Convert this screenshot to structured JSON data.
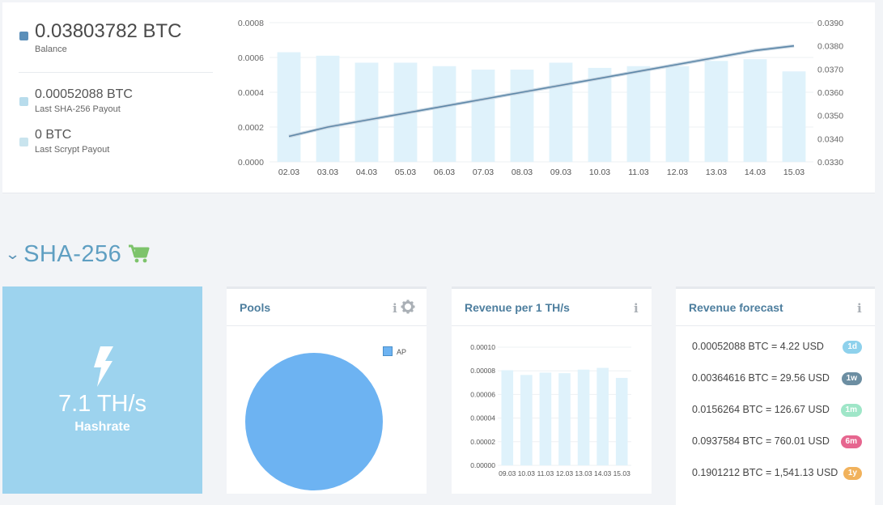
{
  "balance": {
    "amount": "0.03803782 BTC",
    "label": "Balance",
    "color": "#5b8fb9"
  },
  "payouts": [
    {
      "amount": "0.00052088 BTC",
      "label": "Last SHA-256 Payout",
      "color": "#b8dcec"
    },
    {
      "amount": "0 BTC",
      "label": "Last Scrypt Payout",
      "color": "#c9e4ee"
    }
  ],
  "chart_data": [
    {
      "type": "bar+line",
      "categories": [
        "02.03",
        "03.03",
        "04.03",
        "05.03",
        "06.03",
        "07.03",
        "08.03",
        "09.03",
        "10.03",
        "11.03",
        "12.03",
        "13.03",
        "14.03",
        "15.03"
      ],
      "series": [
        {
          "axis": "left",
          "type": "bar",
          "color": "#dff2fb",
          "values": [
            0.00063,
            0.00061,
            0.00057,
            0.00057,
            0.00055,
            0.00053,
            0.00053,
            0.00057,
            0.00054,
            0.00055,
            0.00055,
            0.00058,
            0.00059,
            0.00052
          ]
        },
        {
          "axis": "right",
          "type": "line",
          "color": "#5d87a8",
          "values": [
            0.0341,
            0.0345,
            0.0348,
            0.0351,
            0.0354,
            0.0357,
            0.036,
            0.0363,
            0.0366,
            0.0369,
            0.0372,
            0.0375,
            0.0378,
            0.038
          ]
        }
      ],
      "ylim_left": [
        0,
        0.0008
      ],
      "yticks_left": [
        "0.0000",
        "0.0002",
        "0.0004",
        "0.0006",
        "0.0008"
      ],
      "ylim_right": [
        0.033,
        0.039
      ],
      "yticks_right": [
        "0.0330",
        "0.0340",
        "0.0350",
        "0.0360",
        "0.0370",
        "0.0380",
        "0.0390"
      ],
      "grid": true
    },
    {
      "type": "pie",
      "title": "Pools",
      "slices": [
        {
          "label": "AP",
          "value": 1,
          "color": "#6db3f2"
        }
      ],
      "legend": "top-right"
    },
    {
      "type": "bar",
      "title": "Revenue per 1 TH/s",
      "categories": [
        "09.03",
        "10.03",
        "11.03",
        "12.03",
        "13.03",
        "14.03",
        "15.03"
      ],
      "values": [
        8.05e-05,
        7.65e-05,
        7.85e-05,
        7.8e-05,
        8.1e-05,
        8.25e-05,
        7.4e-05
      ],
      "color": "#dff2fb",
      "ylim": [
        0,
        0.0001
      ],
      "yticks": [
        "0.00000",
        "0.00002",
        "0.00004",
        "0.00006",
        "0.00008",
        "0.00010"
      ],
      "grid": true
    }
  ],
  "section": {
    "title": "SHA-256",
    "cart_color": "#7dc36b"
  },
  "hashrate": {
    "value": "7.1 TH/s",
    "label": "Hashrate"
  },
  "cards": {
    "pools_title": "Pools",
    "revenue_title": "Revenue per 1 TH/s",
    "forecast_title": "Revenue forecast",
    "info_glyph": "i"
  },
  "forecast": [
    {
      "text": "0.00052088 BTC = 4.22 USD",
      "badge": "1d",
      "color": "#8ed1ec"
    },
    {
      "text": "0.00364616 BTC = 29.56 USD",
      "badge": "1w",
      "color": "#6c8ea2"
    },
    {
      "text": "0.0156264 BTC = 126.67 USD",
      "badge": "1m",
      "color": "#9fe6c8"
    },
    {
      "text": "0.0937584 BTC = 760.01 USD",
      "badge": "6m",
      "color": "#e6668f"
    },
    {
      "text": "0.1901212 BTC = 1,541.13 USD",
      "badge": "1y",
      "color": "#f1b25c"
    }
  ]
}
